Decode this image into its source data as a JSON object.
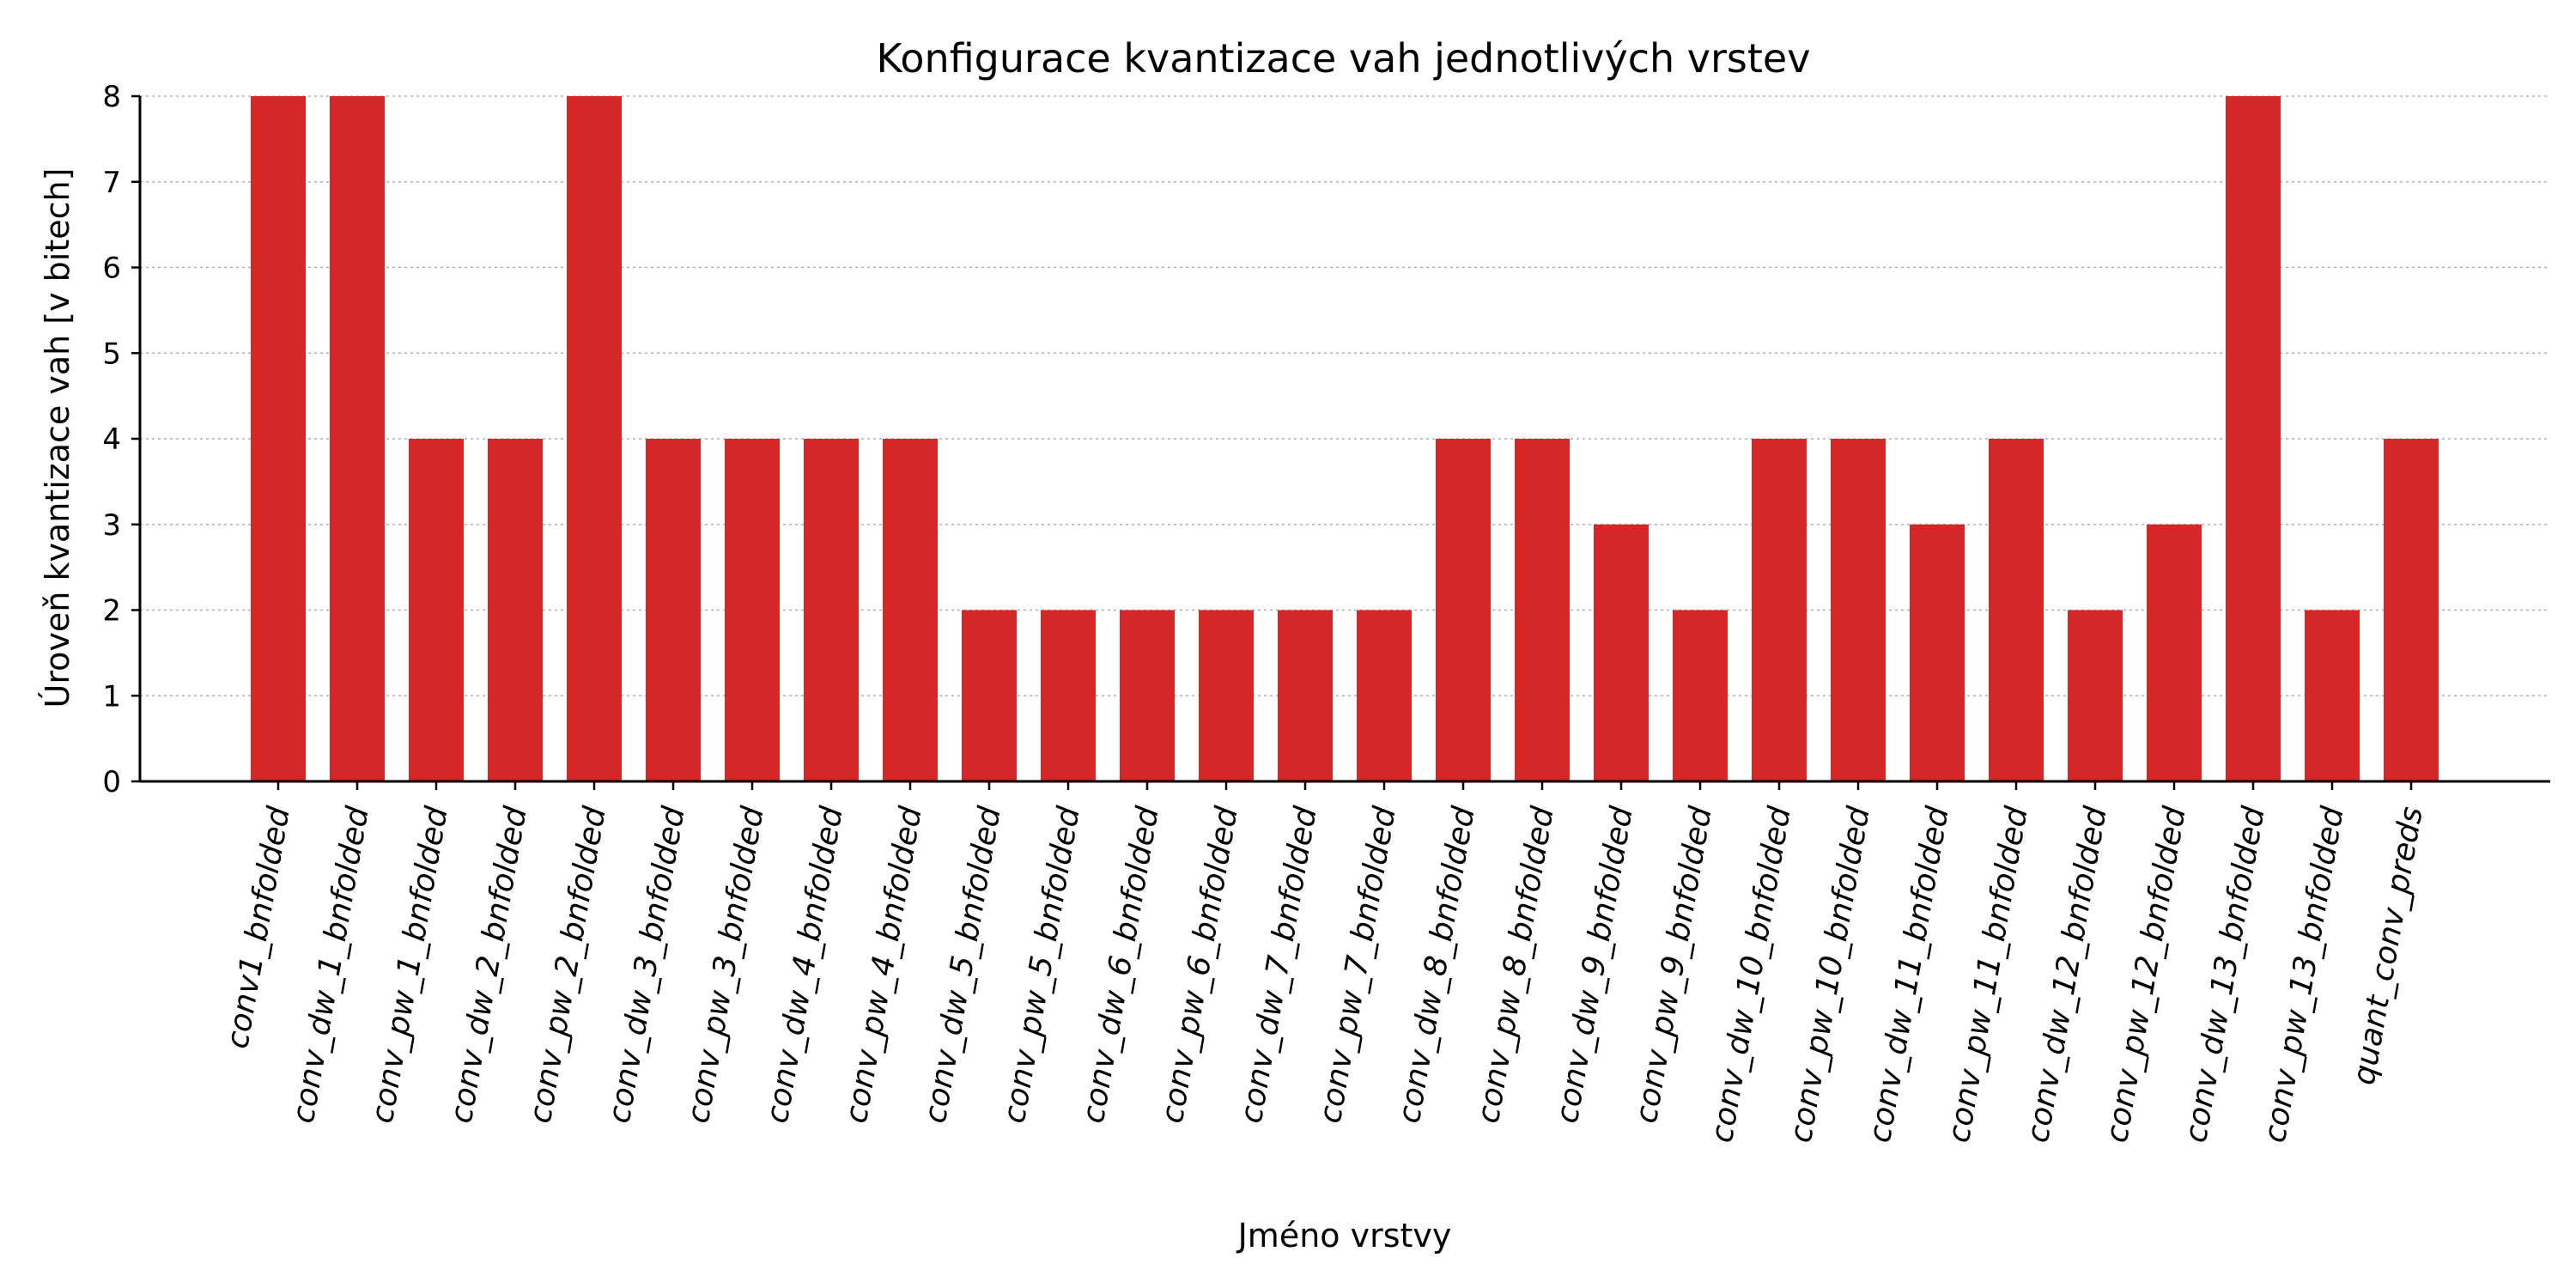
{
  "chart_data": {
    "type": "bar",
    "title": "Konfigurace kvantizace vah jednotlivých vrstev",
    "xlabel": "Jméno vrstvy",
    "ylabel": "Úroveň kvantizace vah [v bitech]",
    "ylim": [
      0,
      8
    ],
    "yticks": [
      "0",
      "1",
      "2",
      "3",
      "4",
      "5",
      "6",
      "7",
      "8"
    ],
    "grid": "y-dotted",
    "bar_color": "#d62728",
    "categories": [
      "conv1_bnfolded",
      "conv_dw_1_bnfolded",
      "conv_pw_1_bnfolded",
      "conv_dw_2_bnfolded",
      "conv_pw_2_bnfolded",
      "conv_dw_3_bnfolded",
      "conv_pw_3_bnfolded",
      "conv_dw_4_bnfolded",
      "conv_pw_4_bnfolded",
      "conv_dw_5_bnfolded",
      "conv_pw_5_bnfolded",
      "conv_dw_6_bnfolded",
      "conv_pw_6_bnfolded",
      "conv_dw_7_bnfolded",
      "conv_pw_7_bnfolded",
      "conv_dw_8_bnfolded",
      "conv_pw_8_bnfolded",
      "conv_dw_9_bnfolded",
      "conv_pw_9_bnfolded",
      "conv_dw_10_bnfolded",
      "conv_pw_10_bnfolded",
      "conv_dw_11_bnfolded",
      "conv_pw_11_bnfolded",
      "conv_dw_12_bnfolded",
      "conv_pw_12_bnfolded",
      "conv_dw_13_bnfolded",
      "conv_pw_13_bnfolded",
      "quant_conv_preds"
    ],
    "values": [
      8,
      8,
      4,
      4,
      8,
      4,
      4,
      4,
      4,
      2,
      2,
      2,
      2,
      2,
      2,
      4,
      4,
      3,
      2,
      4,
      4,
      3,
      4,
      2,
      3,
      8,
      2,
      4
    ]
  }
}
